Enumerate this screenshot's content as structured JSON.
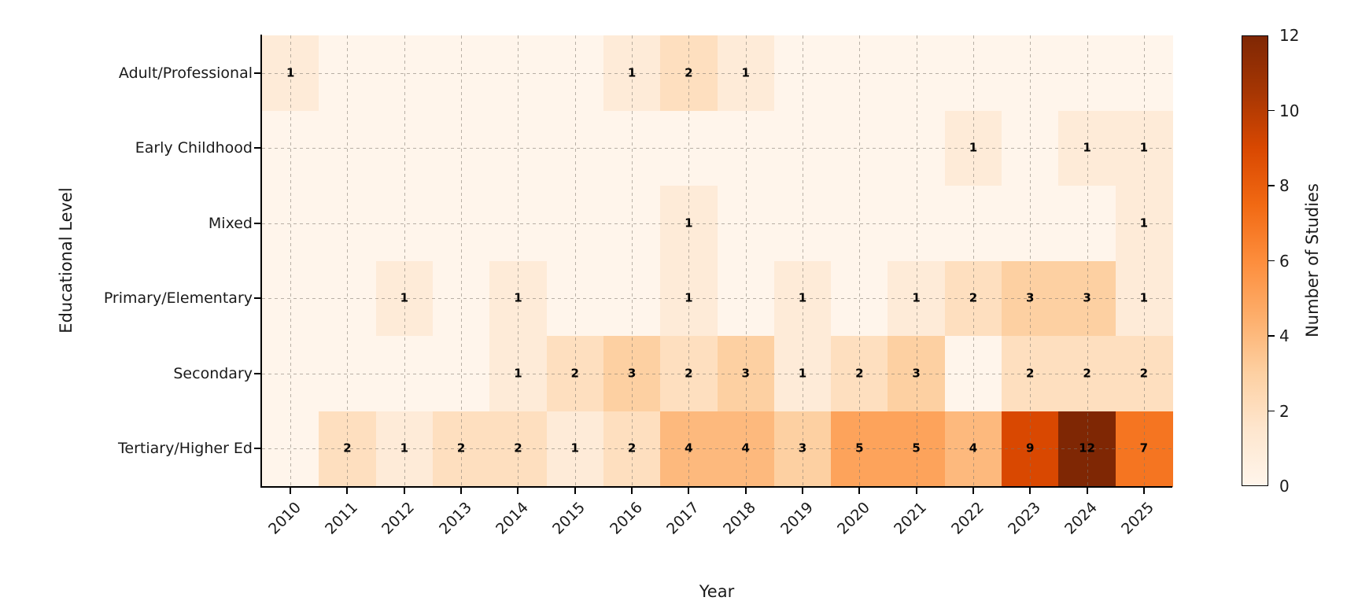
{
  "chart_data": {
    "type": "heatmap",
    "title": "",
    "xlabel": "Year",
    "ylabel": "Educational Level",
    "x_labels": [
      "2010",
      "2011",
      "2012",
      "2013",
      "2014",
      "2015",
      "2016",
      "2017",
      "2018",
      "2019",
      "2020",
      "2021",
      "2022",
      "2023",
      "2024",
      "2025"
    ],
    "y_labels": [
      "Adult/Professional",
      "Early Childhood",
      "Mixed",
      "Primary/Elementary",
      "Secondary",
      "Tertiary/Higher Ed"
    ],
    "matrix": [
      [
        1,
        0,
        0,
        0,
        0,
        0,
        1,
        2,
        1,
        0,
        0,
        0,
        0,
        0,
        0,
        0
      ],
      [
        0,
        0,
        0,
        0,
        0,
        0,
        0,
        0,
        0,
        0,
        0,
        0,
        1,
        0,
        1,
        1
      ],
      [
        0,
        0,
        0,
        0,
        0,
        0,
        0,
        1,
        0,
        0,
        0,
        0,
        0,
        0,
        0,
        1
      ],
      [
        0,
        0,
        1,
        0,
        1,
        0,
        0,
        1,
        0,
        1,
        0,
        1,
        2,
        3,
        3,
        1
      ],
      [
        0,
        0,
        0,
        0,
        1,
        2,
        3,
        2,
        3,
        1,
        2,
        3,
        0,
        2,
        2,
        2
      ],
      [
        0,
        2,
        1,
        2,
        2,
        1,
        2,
        4,
        4,
        3,
        5,
        5,
        4,
        9,
        12,
        7
      ]
    ],
    "annotation_rule": "cell value shown in bold black only when value > 0",
    "annotation_color": "#000000",
    "grid": {
      "visible": true,
      "style": "dashed"
    },
    "legend_position": "right-colorbar",
    "colormap": {
      "name": "Oranges",
      "anchors": [
        "#fff5eb",
        "#fee6ce",
        "#fdd0a2",
        "#fdae6b",
        "#fd8d3c",
        "#f16913",
        "#d94801",
        "#a63603",
        "#7f2704"
      ]
    },
    "colorbar": {
      "label": "Number of Studies",
      "min": 0,
      "max": 12,
      "ticks": [
        0,
        2,
        4,
        6,
        8,
        10,
        12
      ]
    }
  }
}
